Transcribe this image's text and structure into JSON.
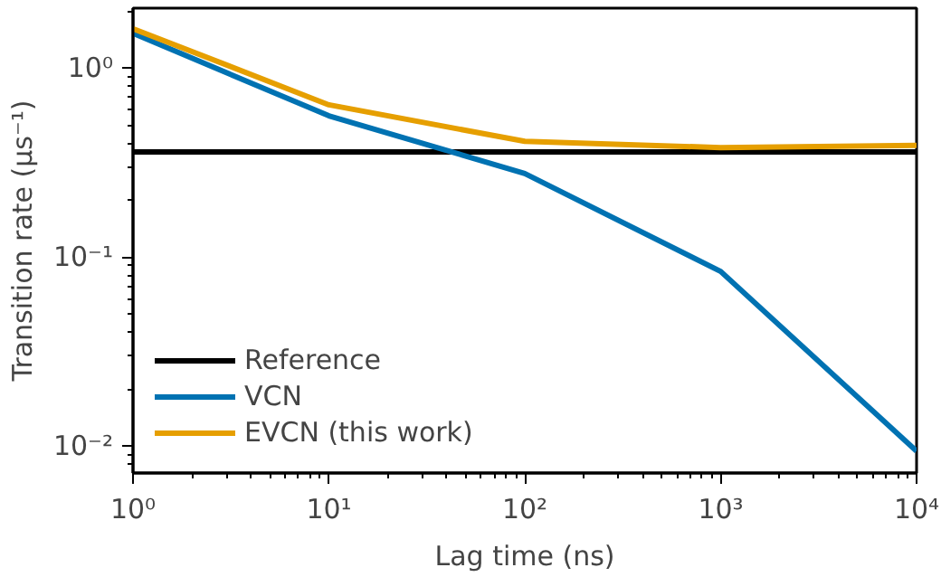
{
  "chart_data": {
    "type": "line",
    "xlabel": "Lag time (ns)",
    "ylabel": "Transition rate (μs⁻¹)",
    "x": [
      1,
      10,
      100,
      1000,
      10000
    ],
    "series": [
      {
        "name": "Reference",
        "color": "#000000",
        "x": [
          1,
          10000
        ],
        "values": [
          0.36,
          0.36
        ]
      },
      {
        "name": "VCN",
        "color": "#0072b2",
        "values": [
          1.53,
          0.56,
          0.277,
          0.084,
          0.0094
        ]
      },
      {
        "name": "EVCN (this work)",
        "color": "#e69f00",
        "values": [
          1.62,
          0.64,
          0.41,
          0.38,
          0.39
        ]
      }
    ],
    "log": "xy",
    "xlim": [
      1,
      10000
    ],
    "ylim": [
      0.0072,
      2.08
    ],
    "xticks": [
      {
        "value": 1,
        "label": "10⁰"
      },
      {
        "value": 10,
        "label": "10¹"
      },
      {
        "value": 100,
        "label": "10²"
      },
      {
        "value": 1000,
        "label": "10³"
      },
      {
        "value": 10000,
        "label": "10⁴"
      }
    ],
    "yticks": [
      {
        "value": 0.01,
        "label": "10⁻²"
      },
      {
        "value": 0.1,
        "label": "10⁻¹"
      },
      {
        "value": 1,
        "label": "10⁰"
      }
    ],
    "grid": false,
    "legend": "bottom left",
    "marker": "none",
    "line_style": "solid"
  }
}
